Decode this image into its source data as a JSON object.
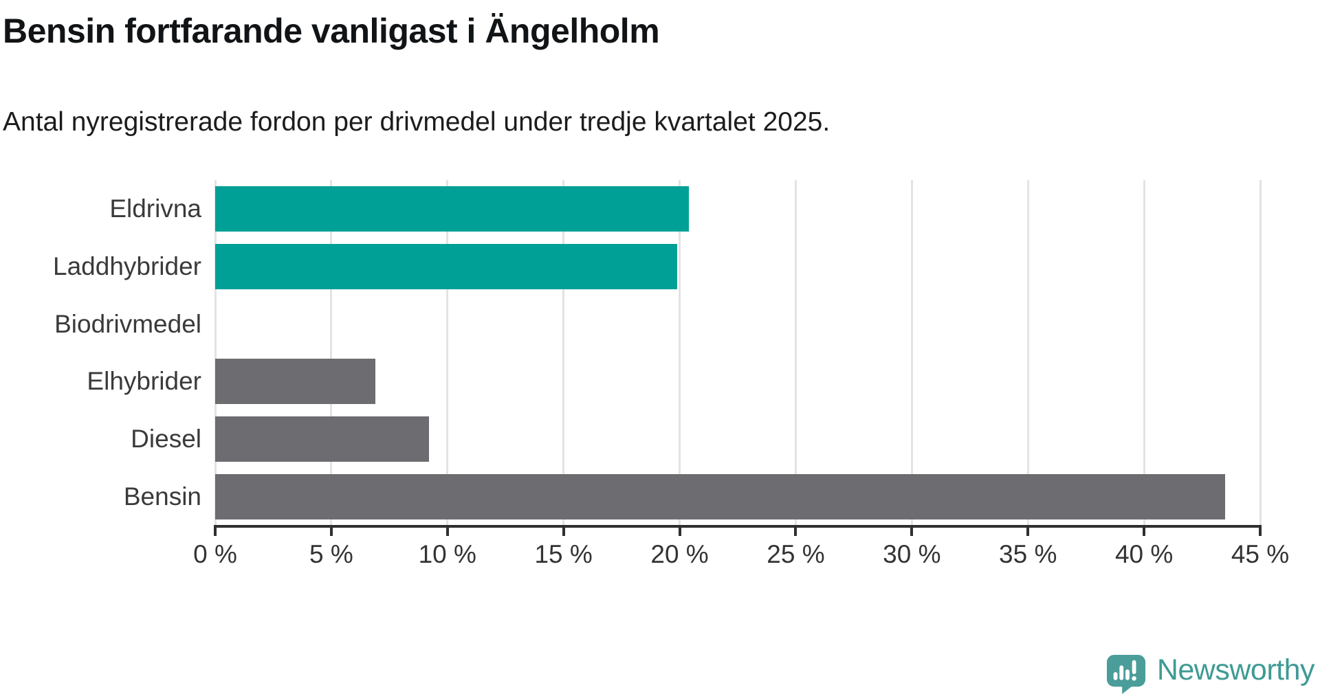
{
  "header": {
    "title": "Bensin fortfarande vanligast i Ängelholm",
    "subtitle": "Antal nyregistrerade fordon per drivmedel under tredje kvartalet 2025."
  },
  "chart_data": {
    "type": "bar",
    "orientation": "horizontal",
    "title": "Bensin fortfarande vanligast i Ängelholm",
    "subtitle": "Antal nyregistrerade fordon per drivmedel under tredje kvartalet 2025.",
    "categories": [
      "Eldrivna",
      "Laddhybrider",
      "Biodrivmedel",
      "Elhybrider",
      "Diesel",
      "Bensin"
    ],
    "values": [
      20.4,
      19.9,
      0,
      6.9,
      9.2,
      43.5
    ],
    "bar_colors": [
      "#00a096",
      "#00a096",
      "#00a096",
      "#6c6c71",
      "#6c6c71",
      "#6c6c71"
    ],
    "unit": "%",
    "xlabel": "",
    "ylabel": "",
    "xlim": [
      0,
      45
    ],
    "x_axis": {
      "ticks": [
        0,
        5,
        10,
        15,
        20,
        25,
        30,
        35,
        40,
        45
      ],
      "tick_labels": [
        "0 %",
        "5 %",
        "10 %",
        "15 %",
        "20 %",
        "25 %",
        "30 %",
        "35 %",
        "40 %",
        "45 %"
      ]
    },
    "grid": "vertical",
    "legend": "none",
    "colors": {
      "accent_teal": "#00a096",
      "neutral_gray": "#6c6c71",
      "gridline": "#e3e3e3",
      "axis": "#2f2f2f",
      "label_text": "#3a3a3a"
    }
  },
  "footer": {
    "brand": "Newsworthy",
    "brand_color": "#3e9b94",
    "icon": "newsworthy-speech-bubble-barchart-icon",
    "icon_color": "#4a9d98"
  }
}
